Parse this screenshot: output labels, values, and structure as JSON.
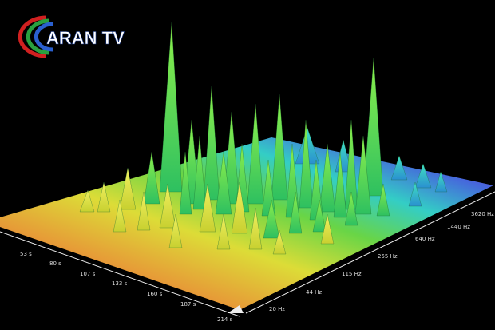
{
  "logo": {
    "text": "ARAN TV"
  },
  "time_axis": {
    "labels": [
      "53 s",
      "80 s",
      "107 s",
      "133 s",
      "160 s",
      "187 s",
      "214 s"
    ]
  },
  "frequency_axis": {
    "labels": [
      "20 Hz",
      "44 Hz",
      "115 Hz",
      "255 Hz",
      "640 Hz",
      "1440 Hz",
      "3620 Hz"
    ]
  }
}
